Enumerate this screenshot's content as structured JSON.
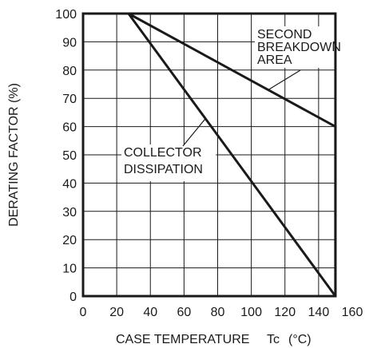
{
  "chart_data": {
    "type": "line",
    "title": "",
    "xlabel": "CASE TEMPERATURE",
    "xlabel_symbol": "Tc",
    "xlabel_unit": "(°C)",
    "ylabel": "DERATING FACTOR (%)",
    "xlim": [
      0,
      150
    ],
    "ylim": [
      0,
      100
    ],
    "xticks": [
      "0",
      "20",
      "40",
      "60",
      "80",
      "100",
      "120",
      "140",
      "160"
    ],
    "yticks": [
      "0",
      "10",
      "20",
      "30",
      "40",
      "50",
      "60",
      "70",
      "80",
      "90",
      "100"
    ],
    "grid": true,
    "series": [
      {
        "name": "SECOND BREAKDOWN AREA",
        "x": [
          27,
          150,
          150
        ],
        "y": [
          100,
          60,
          0
        ]
      },
      {
        "name": "COLLECTOR DISSIPATION",
        "x": [
          27,
          150
        ],
        "y": [
          100,
          0
        ]
      }
    ],
    "annotations": [
      {
        "lines": [
          "SECOND",
          "BREAKDOWN",
          "AREA"
        ],
        "points_to": {
          "x": 110,
          "y": 73
        }
      },
      {
        "lines": [
          "COLLECTOR",
          "DISSIPATION"
        ],
        "points_to": {
          "x": 73,
          "y": 63
        }
      }
    ]
  }
}
